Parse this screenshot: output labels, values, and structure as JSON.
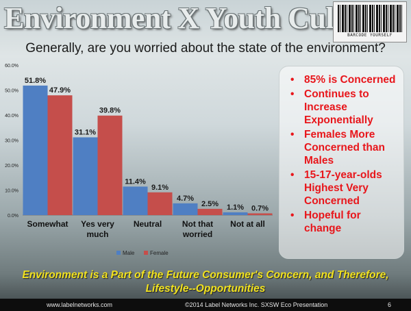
{
  "title": "Environment X Youth Culture",
  "barcode_text": "BARCODE YOURSELF",
  "question": "Generally, are you worried about the state of the environment?",
  "chart_data": {
    "type": "bar",
    "categories": [
      "Somewhat",
      "Yes very much",
      "Neutral",
      "Not that worried",
      "Not at all"
    ],
    "series": [
      {
        "name": "Male",
        "values": [
          51.8,
          31.1,
          11.4,
          4.7,
          1.1
        ],
        "labels": [
          "51.8%",
          "31.1%",
          "11.4%",
          "4.7%",
          "1.1%"
        ],
        "color": "#4f7fc3"
      },
      {
        "name": "Female",
        "values": [
          47.9,
          39.8,
          9.1,
          2.5,
          0.7
        ],
        "labels": [
          "47.9%",
          "39.8%",
          "9.1%",
          "2.5%",
          "0.7%"
        ],
        "color": "#c54e4b"
      }
    ],
    "yticks": [
      "0.0%",
      "10.0%",
      "20.0%",
      "30.0%",
      "40.0%",
      "50.0%",
      "60.0%"
    ],
    "ylim": [
      0,
      60
    ],
    "legend_position": "bottom"
  },
  "bullets": [
    "85% is Concerned",
    "Continues to Increase Exponentially",
    "Females More Concerned than Males",
    "15-17-year-olds Highest Very Concerned",
    "Hopeful for change"
  ],
  "tagline": "Environment is a Part of the Future Consumer's Concern, and Therefore, Lifestyle--Opportunities",
  "footer": {
    "left": "www.labelnetworks.com",
    "center": "©2014 Label Networks Inc. SXSW Eco Presentation",
    "page": "6"
  }
}
